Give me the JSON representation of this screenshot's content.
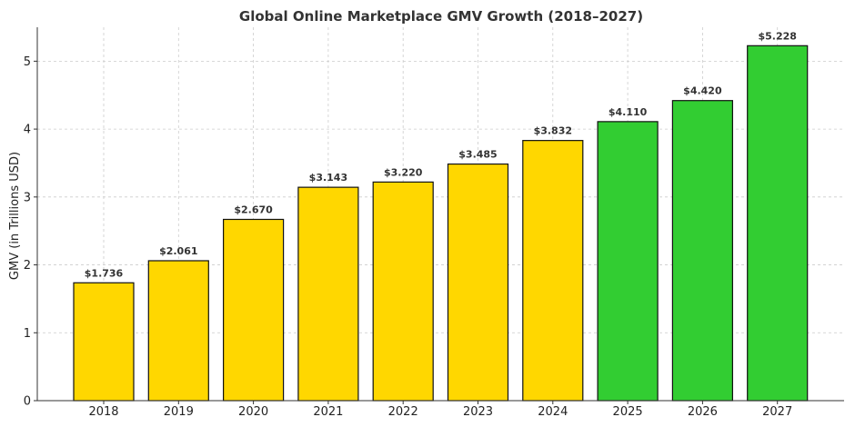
{
  "chart_data": {
    "type": "bar",
    "title": "Global Online Marketplace GMV Growth (2018–2027)",
    "xlabel": "",
    "ylabel": "GMV (in Trillions USD)",
    "categories": [
      "2018",
      "2019",
      "2020",
      "2021",
      "2022",
      "2023",
      "2024",
      "2025",
      "2026",
      "2027"
    ],
    "values": [
      1.736,
      2.061,
      2.67,
      3.143,
      3.22,
      3.485,
      3.832,
      4.11,
      4.42,
      5.228
    ],
    "data_labels": [
      "$1.736",
      "$2.061",
      "$2.670",
      "$3.143",
      "$3.220",
      "$3.485",
      "$3.832",
      "$4.110",
      "$4.420",
      "$5.228"
    ],
    "bar_colors": [
      "#FFD700",
      "#FFD700",
      "#FFD700",
      "#FFD700",
      "#FFD700",
      "#FFD700",
      "#FFD700",
      "#32CD32",
      "#32CD32",
      "#32CD32"
    ],
    "ylim": [
      0,
      5.5
    ],
    "yticks": [
      0,
      1,
      2,
      3,
      4,
      5
    ],
    "grid": true,
    "legend": "none"
  }
}
